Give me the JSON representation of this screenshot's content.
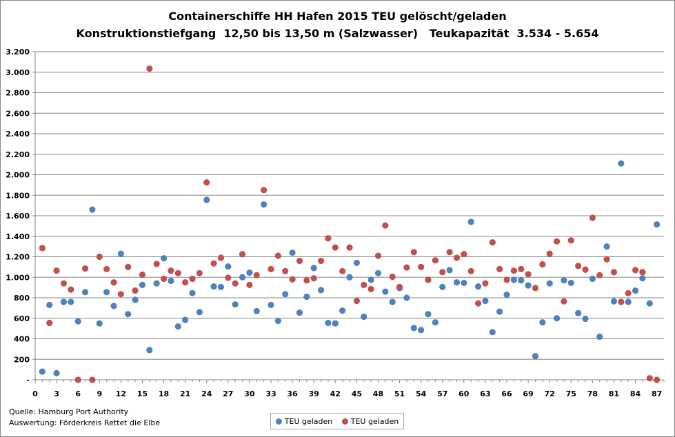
{
  "chart_data": {
    "type": "scatter",
    "title": "Containerschiffe HH Hafen 2015 TEU gelöscht/geladen",
    "subtitle": "Konstruktionstiefgang  12,50 bis 13,50 m (Salzwasser)   Teukapazität  3.534 - 5.654",
    "xlim": [
      0,
      88
    ],
    "ylim": [
      0,
      3200
    ],
    "xticks": [
      0,
      3,
      6,
      9,
      12,
      15,
      18,
      21,
      24,
      27,
      30,
      33,
      36,
      39,
      42,
      45,
      48,
      51,
      54,
      57,
      60,
      63,
      66,
      69,
      72,
      75,
      78,
      81,
      84,
      87
    ],
    "xtick_labels": [
      "0",
      "3",
      "6",
      "9",
      "12",
      "15",
      "18",
      "21",
      "24",
      "27",
      "30",
      "33",
      "36",
      "39",
      "42",
      "45",
      "48",
      "51",
      "54",
      "57",
      "60",
      "63",
      "66",
      "69",
      "72",
      "75",
      "78",
      "81",
      "84",
      "87"
    ],
    "xminor_ticks": [
      1,
      2,
      4,
      5,
      7,
      8,
      10,
      11,
      13,
      14,
      16,
      17,
      19,
      20,
      22,
      23,
      25,
      26,
      28,
      29,
      31,
      32,
      34,
      35,
      37,
      38,
      40,
      41,
      43,
      44,
      46,
      47,
      49,
      50,
      52,
      53,
      55,
      56,
      58,
      59,
      61,
      62,
      64,
      65,
      67,
      68,
      70,
      71,
      73,
      74,
      76,
      77,
      79,
      80,
      82,
      83,
      85,
      86,
      88
    ],
    "yticks": [
      0,
      200,
      400,
      600,
      800,
      1000,
      1200,
      1400,
      1600,
      1800,
      2000,
      2200,
      2400,
      2600,
      2800,
      3000,
      3200
    ],
    "ytick_labels": [
      "-",
      "200",
      "400",
      "600",
      "800",
      "1.000",
      "1.200",
      "1.400",
      "1.600",
      "1.800",
      "2.000",
      "2.200",
      "2.400",
      "2.600",
      "2.800",
      "3.000",
      "3.200"
    ],
    "grid": "horizontal",
    "legend": "bottom-center",
    "series": [
      {
        "name": "TEU geladen",
        "color": "#4f81bd",
        "points": [
          [
            1,
            80
          ],
          [
            2,
            730
          ],
          [
            3,
            65
          ],
          [
            4,
            760
          ],
          [
            5,
            760
          ],
          [
            6,
            570
          ],
          [
            7,
            855
          ],
          [
            8,
            1660
          ],
          [
            9,
            550
          ],
          [
            10,
            855
          ],
          [
            11,
            720
          ],
          [
            12,
            1230
          ],
          [
            13,
            640
          ],
          [
            14,
            780
          ],
          [
            15,
            925
          ],
          [
            16,
            290
          ],
          [
            17,
            940
          ],
          [
            18,
            1185
          ],
          [
            19,
            965
          ],
          [
            20,
            520
          ],
          [
            21,
            585
          ],
          [
            22,
            845
          ],
          [
            23,
            660
          ],
          [
            24,
            1755
          ],
          [
            25,
            910
          ],
          [
            26,
            905
          ],
          [
            27,
            1105
          ],
          [
            28,
            735
          ],
          [
            29,
            1000
          ],
          [
            30,
            1045
          ],
          [
            31,
            670
          ],
          [
            32,
            1710
          ],
          [
            33,
            730
          ],
          [
            34,
            575
          ],
          [
            35,
            835
          ],
          [
            36,
            1240
          ],
          [
            37,
            655
          ],
          [
            38,
            810
          ],
          [
            39,
            1090
          ],
          [
            40,
            875
          ],
          [
            41,
            555
          ],
          [
            42,
            550
          ],
          [
            43,
            675
          ],
          [
            44,
            1000
          ],
          [
            45,
            1140
          ],
          [
            46,
            615
          ],
          [
            47,
            975
          ],
          [
            48,
            1040
          ],
          [
            49,
            860
          ],
          [
            50,
            760
          ],
          [
            51,
            895
          ],
          [
            52,
            800
          ],
          [
            53,
            505
          ],
          [
            54,
            485
          ],
          [
            55,
            640
          ],
          [
            56,
            560
          ],
          [
            57,
            905
          ],
          [
            58,
            1070
          ],
          [
            59,
            950
          ],
          [
            60,
            945
          ],
          [
            61,
            1540
          ],
          [
            62,
            910
          ],
          [
            63,
            770
          ],
          [
            64,
            465
          ],
          [
            65,
            665
          ],
          [
            66,
            830
          ],
          [
            67,
            975
          ],
          [
            68,
            970
          ],
          [
            69,
            920
          ],
          [
            70,
            230
          ],
          [
            71,
            560
          ],
          [
            72,
            940
          ],
          [
            73,
            600
          ],
          [
            74,
            970
          ],
          [
            75,
            945
          ],
          [
            76,
            650
          ],
          [
            77,
            595
          ],
          [
            78,
            985
          ],
          [
            79,
            420
          ],
          [
            80,
            1300
          ],
          [
            81,
            765
          ],
          [
            82,
            2110
          ],
          [
            83,
            760
          ],
          [
            84,
            870
          ],
          [
            85,
            990
          ],
          [
            86,
            745
          ],
          [
            87,
            1515
          ]
        ]
      },
      {
        "name": "TEU geladen",
        "color": "#c0504d",
        "points": [
          [
            1,
            1285
          ],
          [
            2,
            555
          ],
          [
            3,
            1065
          ],
          [
            4,
            940
          ],
          [
            5,
            880
          ],
          [
            6,
            0
          ],
          [
            7,
            1085
          ],
          [
            8,
            0
          ],
          [
            9,
            1200
          ],
          [
            10,
            1080
          ],
          [
            11,
            950
          ],
          [
            12,
            835
          ],
          [
            13,
            1100
          ],
          [
            14,
            870
          ],
          [
            15,
            1025
          ],
          [
            16,
            3035
          ],
          [
            17,
            1130
          ],
          [
            18,
            985
          ],
          [
            19,
            1065
          ],
          [
            20,
            1040
          ],
          [
            21,
            950
          ],
          [
            22,
            985
          ],
          [
            23,
            1040
          ],
          [
            24,
            1925
          ],
          [
            25,
            1135
          ],
          [
            26,
            1190
          ],
          [
            27,
            995
          ],
          [
            28,
            940
          ],
          [
            29,
            1225
          ],
          [
            30,
            925
          ],
          [
            31,
            1020
          ],
          [
            32,
            1850
          ],
          [
            33,
            1080
          ],
          [
            34,
            1210
          ],
          [
            35,
            1060
          ],
          [
            36,
            980
          ],
          [
            37,
            1160
          ],
          [
            38,
            970
          ],
          [
            39,
            990
          ],
          [
            40,
            1160
          ],
          [
            41,
            1380
          ],
          [
            42,
            1290
          ],
          [
            43,
            1060
          ],
          [
            44,
            1290
          ],
          [
            45,
            770
          ],
          [
            46,
            925
          ],
          [
            47,
            885
          ],
          [
            48,
            1210
          ],
          [
            49,
            1505
          ],
          [
            50,
            1005
          ],
          [
            51,
            905
          ],
          [
            52,
            1095
          ],
          [
            53,
            1245
          ],
          [
            54,
            1100
          ],
          [
            55,
            975
          ],
          [
            56,
            1165
          ],
          [
            57,
            1050
          ],
          [
            58,
            1245
          ],
          [
            59,
            1190
          ],
          [
            60,
            1225
          ],
          [
            61,
            1060
          ],
          [
            62,
            745
          ],
          [
            63,
            940
          ],
          [
            64,
            1340
          ],
          [
            65,
            1080
          ],
          [
            66,
            975
          ],
          [
            67,
            1065
          ],
          [
            68,
            1080
          ],
          [
            69,
            1030
          ],
          [
            70,
            895
          ],
          [
            71,
            1125
          ],
          [
            72,
            1230
          ],
          [
            73,
            1350
          ],
          [
            74,
            765
          ],
          [
            75,
            1360
          ],
          [
            76,
            1110
          ],
          [
            77,
            1075
          ],
          [
            78,
            1580
          ],
          [
            79,
            1020
          ],
          [
            80,
            1175
          ],
          [
            81,
            1050
          ],
          [
            82,
            760
          ],
          [
            83,
            845
          ],
          [
            84,
            1070
          ],
          [
            85,
            1050
          ],
          [
            86,
            15
          ],
          [
            87,
            0
          ]
        ]
      }
    ]
  },
  "footer": {
    "source": "Quelle: Hamburg Port Authority",
    "analysis": "Auswertung: Förderkreis Rettet die Elbe"
  }
}
